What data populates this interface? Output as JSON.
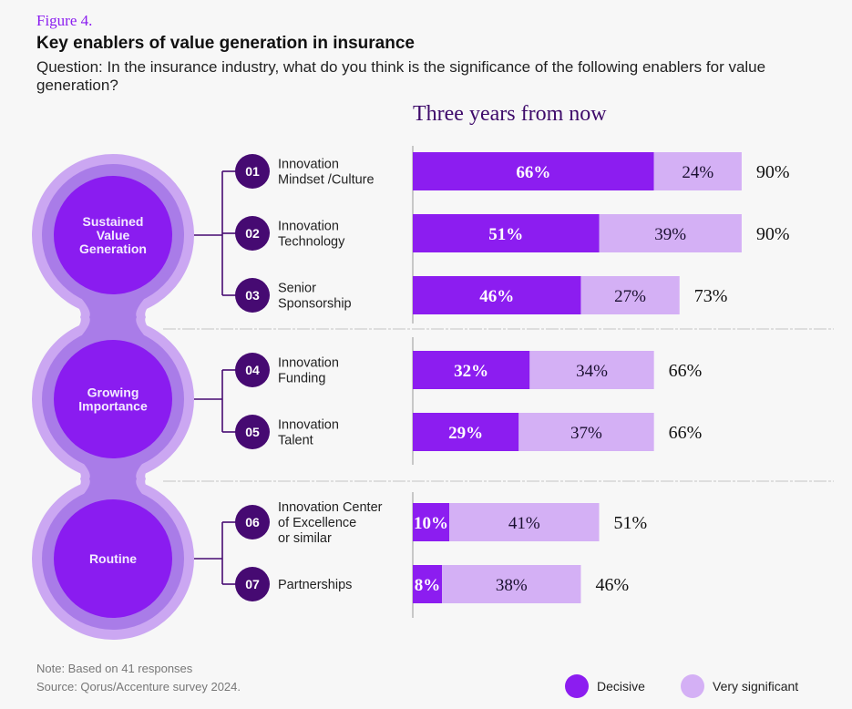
{
  "header": {
    "figure_label": "Figure 4.",
    "title": "Key enablers of value generation in insurance",
    "question": "Question: In the insurance industry, what do you think is the significance of the following enablers for value generation?"
  },
  "footer": {
    "note": "Note: Based on 41 responses",
    "source": "Source: Qorus/Accenture survey 2024."
  },
  "colors": {
    "decisive": "#8c1df0",
    "very_significant": "#d4b0f5",
    "badge": "#460a72",
    "ring_outer": "#cba7f2",
    "ring_middle": "#a97ce8",
    "circle_inner": "#8a1cf0",
    "connector": "#460a72",
    "subtitle": "#3e0a6a"
  },
  "chart_data": {
    "type": "bar",
    "orientation": "horizontal",
    "stacked": true,
    "title": "Three years from now",
    "xlabel": "",
    "ylabel": "",
    "xlim": [
      0,
      100
    ],
    "grid": false,
    "legend_position": "bottom-right",
    "legend": [
      "Decisive",
      "Very significant"
    ],
    "groups": [
      {
        "name": "Sustained Value Generation",
        "items": [
          "01",
          "02",
          "03"
        ]
      },
      {
        "name": "Growing Importance",
        "items": [
          "04",
          "05"
        ]
      },
      {
        "name": "Routine",
        "items": [
          "06",
          "07"
        ]
      }
    ],
    "categories": [
      {
        "num": "01",
        "label_lines": [
          "Innovation",
          "Mindset /Culture"
        ]
      },
      {
        "num": "02",
        "label_lines": [
          "Innovation",
          "Technology"
        ]
      },
      {
        "num": "03",
        "label_lines": [
          "Senior",
          "Sponsorship"
        ]
      },
      {
        "num": "04",
        "label_lines": [
          "Innovation",
          "Funding"
        ]
      },
      {
        "num": "05",
        "label_lines": [
          "Innovation",
          "Talent"
        ]
      },
      {
        "num": "06",
        "label_lines": [
          "Innovation Center",
          "of Excellence",
          "or similar"
        ]
      },
      {
        "num": "07",
        "label_lines": [
          "Partnerships"
        ]
      }
    ],
    "series": [
      {
        "name": "Decisive",
        "values": [
          66,
          51,
          46,
          32,
          29,
          10,
          8
        ]
      },
      {
        "name": "Very significant",
        "values": [
          24,
          39,
          27,
          34,
          37,
          41,
          38
        ]
      }
    ],
    "totals": [
      90,
      90,
      73,
      66,
      66,
      51,
      46
    ],
    "group_labels": [
      [
        "Sustained",
        "Value",
        "Generation"
      ],
      [
        "Growing",
        "Importance"
      ],
      [
        "Routine"
      ]
    ]
  }
}
